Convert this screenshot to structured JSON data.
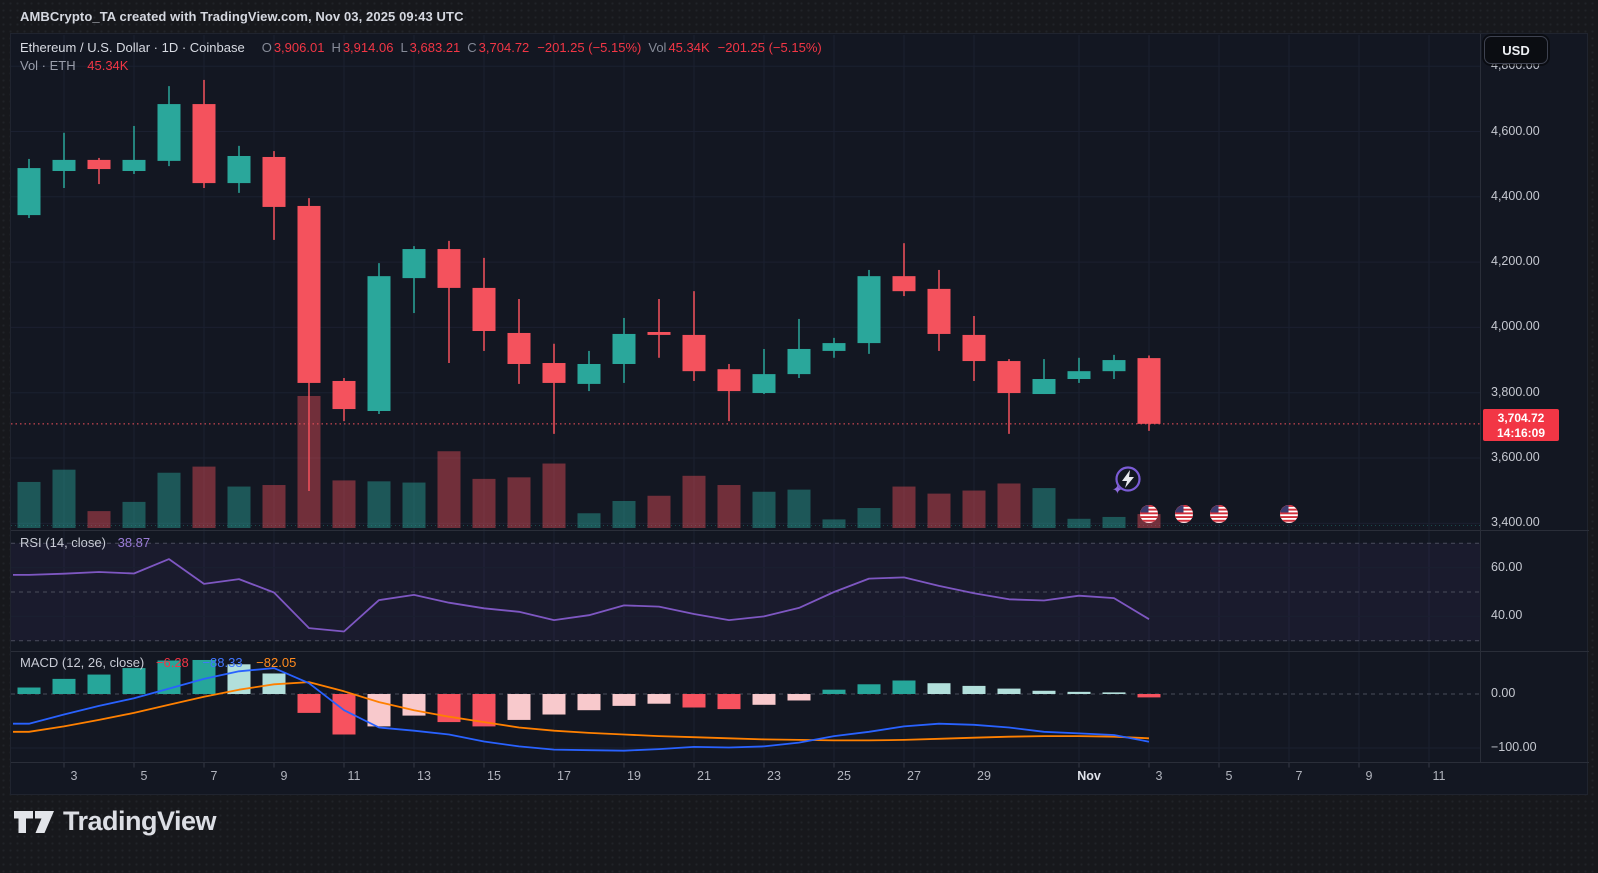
{
  "attribution": "AMBCrypto_TA created with TradingView.com, Nov 03, 2025 09:43 UTC",
  "currency_button": "USD",
  "brand": {
    "logo_text": "TradingView"
  },
  "legend": {
    "symbol": "Ethereum / U.S. Dollar · 1D · Coinbase",
    "o_label": "O",
    "o_value": "3,906.01",
    "h_label": "H",
    "h_value": "3,914.06",
    "l_label": "L",
    "l_value": "3,683.21",
    "c_label": "C",
    "c_value": "3,704.72",
    "change": "−201.25 (−5.15%)",
    "vol_label": "Vol",
    "vol_value": "45.34K",
    "change2": "−201.25 (−5.15%)",
    "row2_label": "Vol · ETH",
    "row2_value": "45.34K"
  },
  "rsi_legend": {
    "label": "RSI (14, close)",
    "value": "38.87"
  },
  "macd_legend": {
    "label": "MACD (12, 26, close)",
    "hist_value": "−6.28",
    "macd_value": "−88.33",
    "signal_value": "−82.05"
  },
  "last_price_tag": {
    "price": "3,704.72",
    "time": "14:16:09"
  },
  "price_axis_labels": [
    {
      "text": "4,800.00",
      "price": 4800
    },
    {
      "text": "4,600.00",
      "price": 4600
    },
    {
      "text": "4,400.00",
      "price": 4400
    },
    {
      "text": "4,200.00",
      "price": 4200
    },
    {
      "text": "4,000.00",
      "price": 4000
    },
    {
      "text": "3,800.00",
      "price": 3800
    },
    {
      "text": "3,600.00",
      "price": 3600
    },
    {
      "text": "3,400.00",
      "price": 3400
    }
  ],
  "rsi_axis_labels": [
    {
      "text": "60.00",
      "value": 60
    },
    {
      "text": "40.00",
      "value": 40
    }
  ],
  "macd_axis_labels": [
    {
      "text": "0.00",
      "value": 0
    },
    {
      "text": "−100.00",
      "value": -100
    }
  ],
  "time_axis_labels": [
    {
      "label": "3",
      "day": 1
    },
    {
      "label": "5",
      "day": 3
    },
    {
      "label": "7",
      "day": 5
    },
    {
      "label": "9",
      "day": 7
    },
    {
      "label": "11",
      "day": 9
    },
    {
      "label": "13",
      "day": 11
    },
    {
      "label": "15",
      "day": 13
    },
    {
      "label": "17",
      "day": 15
    },
    {
      "label": "19",
      "day": 17
    },
    {
      "label": "21",
      "day": 19
    },
    {
      "label": "23",
      "day": 21
    },
    {
      "label": "25",
      "day": 23
    },
    {
      "label": "27",
      "day": 25
    },
    {
      "label": "29",
      "day": 27
    },
    {
      "label": "Nov",
      "day": 30,
      "month": true
    },
    {
      "label": "3",
      "day": 32
    },
    {
      "label": "5",
      "day": 34
    },
    {
      "label": "7",
      "day": 36
    },
    {
      "label": "9",
      "day": 38
    },
    {
      "label": "11",
      "day": 40
    }
  ],
  "colors": {
    "up": "#2aa79b",
    "down": "#f4525d",
    "vol_up": "rgba(42,167,155,0.45)",
    "vol_down": "rgba(244,82,93,0.42)",
    "rsi_line": "#7e57c2",
    "rsi_band": "rgba(126,87,194,0.07)",
    "macd_line": "#2962ff",
    "signal_line": "#ff8000",
    "hist_pos": "#26a69a",
    "hist_pos_weak": "#b2dfdb",
    "hist_neg": "#f7525f",
    "hist_neg_weak": "#f8c9cc",
    "accent_red": "#f23645",
    "grid": "#1b2030",
    "dashed_level": "#565a68",
    "panel_border": "#2a2e39"
  },
  "chart_data": {
    "type": "candlestick",
    "symbol": "ETH/USD",
    "interval": "1D",
    "exchange": "Coinbase",
    "title": "Ethereum / U.S. Dollar · 1D · Coinbase",
    "price_axis_range": [
      3400,
      4800
    ],
    "x_dates": [
      "Oct 2",
      "Oct 3",
      "Oct 4",
      "Oct 5",
      "Oct 6",
      "Oct 7",
      "Oct 8",
      "Oct 9",
      "Oct 10",
      "Oct 11",
      "Oct 12",
      "Oct 13",
      "Oct 14",
      "Oct 15",
      "Oct 16",
      "Oct 17",
      "Oct 18",
      "Oct 19",
      "Oct 20",
      "Oct 21",
      "Oct 22",
      "Oct 23",
      "Oct 24",
      "Oct 25",
      "Oct 26",
      "Oct 27",
      "Oct 28",
      "Oct 29",
      "Oct 30",
      "Oct 31",
      "Nov 1",
      "Nov 2",
      "Nov 3"
    ],
    "ohlc": {
      "open": [
        4344,
        4479,
        4513,
        4479,
        4510,
        4684,
        4442,
        4522,
        4372,
        3836,
        3744,
        4151,
        4240,
        4121,
        3983,
        3891,
        3827,
        3888,
        3986,
        3977,
        3872,
        3799,
        3857,
        3928,
        3952,
        4157,
        4118,
        3977,
        3897,
        3796,
        3842,
        3866,
        3906.01
      ],
      "high": [
        4516,
        4596,
        4519,
        4617,
        4739,
        4758,
        4556,
        4540,
        4396,
        3845,
        4197,
        4249,
        4265,
        4213,
        4087,
        3950,
        3928,
        4029,
        4087,
        4111,
        3888,
        3934,
        4026,
        3968,
        4176,
        4258,
        4176,
        4035,
        3903,
        3903,
        3907,
        3916,
        3914.06
      ],
      "low": [
        4335,
        4427,
        4439,
        4470,
        4494,
        4427,
        4412,
        4268,
        3499,
        3713,
        3735,
        4044,
        3891,
        3928,
        3827,
        3674,
        3805,
        3830,
        3907,
        3836,
        3713,
        3796,
        3845,
        3907,
        3919,
        4096,
        3928,
        3836,
        3674,
        3796,
        3830,
        3842,
        3683.21
      ],
      "close": [
        4488,
        4513,
        4485,
        4513,
        4684,
        4442,
        4525,
        4369,
        3830,
        3750,
        4157,
        4240,
        4121,
        3989,
        3888,
        3830,
        3888,
        3980,
        3977,
        3866,
        3805,
        3857,
        3934,
        3952,
        4157,
        4111,
        3980,
        3897,
        3799,
        3842,
        3866,
        3900,
        3704.72
      ]
    },
    "volume_k": [
      150,
      190,
      55,
      85,
      180,
      200,
      135,
      140,
      430,
      155,
      152,
      148,
      250,
      160,
      165,
      210,
      48,
      88,
      105,
      170,
      140,
      118,
      125,
      28,
      65,
      135,
      112,
      122,
      145,
      130,
      30,
      36,
      45.34
    ],
    "rsi_14": [
      57.0,
      57.5,
      58.2,
      57.6,
      63.5,
      53.3,
      55.3,
      49.8,
      35.2,
      33.8,
      46.7,
      48.8,
      45.6,
      43.3,
      41.9,
      38.5,
      40.5,
      44.5,
      44.0,
      41.0,
      38.5,
      40.0,
      43.5,
      50.0,
      55.5,
      56.0,
      52.5,
      49.5,
      47.0,
      46.5,
      48.5,
      47.5,
      38.87
    ],
    "rsi_levels": [
      70,
      50,
      30
    ],
    "macd": {
      "hist": [
        12,
        28,
        36,
        48,
        62,
        63,
        55,
        38,
        -35,
        -75,
        -60,
        -40,
        -52,
        -60,
        -48,
        -38,
        -30,
        -22,
        -18,
        -25,
        -28,
        -20,
        -12,
        8,
        18,
        25,
        20,
        15,
        10,
        6,
        4,
        3,
        -6.28
      ],
      "macd_line": [
        -55,
        -38,
        -22,
        -8,
        10,
        28,
        42,
        48,
        20,
        -30,
        -62,
        -68,
        -75,
        -88,
        -97,
        -103,
        -104,
        -105,
        -102,
        -98,
        -99,
        -97,
        -90,
        -78,
        -70,
        -60,
        -55,
        -57,
        -62,
        -70,
        -73,
        -76,
        -88.33
      ],
      "signal_line": [
        -70,
        -60,
        -48,
        -35,
        -20,
        -5,
        8,
        18,
        22,
        5,
        -15,
        -30,
        -42,
        -52,
        -62,
        -68,
        -72,
        -75,
        -78,
        -80,
        -82,
        -84,
        -85,
        -86,
        -86,
        -85,
        -83,
        -81,
        -79,
        -78,
        -78,
        -79,
        -82.05
      ]
    },
    "last_price": 3704.72,
    "event_markers": {
      "us_flag_event_days": [
        32,
        33,
        34,
        36
      ],
      "us_flag_event_dates": [
        "Nov 3",
        "Nov 4",
        "Nov 5",
        "Nov 7"
      ],
      "lightning_marker_x_day": 31.4
    }
  }
}
